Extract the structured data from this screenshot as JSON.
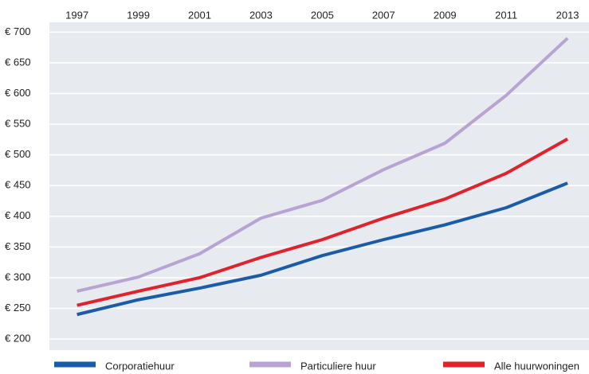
{
  "chart_data": {
    "type": "line",
    "x": [
      1997,
      1999,
      2001,
      2003,
      2005,
      2007,
      2009,
      2011,
      2013
    ],
    "xlim": [
      1996.1,
      2013.7
    ],
    "xticks": [
      1997,
      1999,
      2001,
      2003,
      2005,
      2007,
      2009,
      2011,
      2013
    ],
    "ylim": [
      182,
      716
    ],
    "yticks": [
      {
        "value": 200,
        "label": "€ 200"
      },
      {
        "value": 250,
        "label": "€ 250"
      },
      {
        "value": 300,
        "label": "€ 300"
      },
      {
        "value": 350,
        "label": "€ 350"
      },
      {
        "value": 400,
        "label": "€ 400"
      },
      {
        "value": 450,
        "label": "€ 450"
      },
      {
        "value": 500,
        "label": "€ 500"
      },
      {
        "value": 550,
        "label": "€ 550"
      },
      {
        "value": 600,
        "label": "€ 600"
      },
      {
        "value": 650,
        "label": "€ 650"
      },
      {
        "value": 700,
        "label": "€ 700"
      }
    ],
    "grid": true,
    "legend": "bottom",
    "series": [
      {
        "name": "Corporatiehuur",
        "color": "#1b5ca8",
        "values": [
          240,
          264,
          283,
          304,
          336,
          362,
          386,
          414,
          454
        ]
      },
      {
        "name": "Particuliere huur",
        "color": "#b9a3d3",
        "values": [
          278,
          301,
          339,
          397,
          426,
          476,
          519,
          597,
          690
        ]
      },
      {
        "name": "Alle huurwoningen",
        "color": "#e3212a",
        "values": [
          255,
          278,
          300,
          333,
          362,
          397,
          428,
          470,
          526
        ]
      }
    ]
  }
}
